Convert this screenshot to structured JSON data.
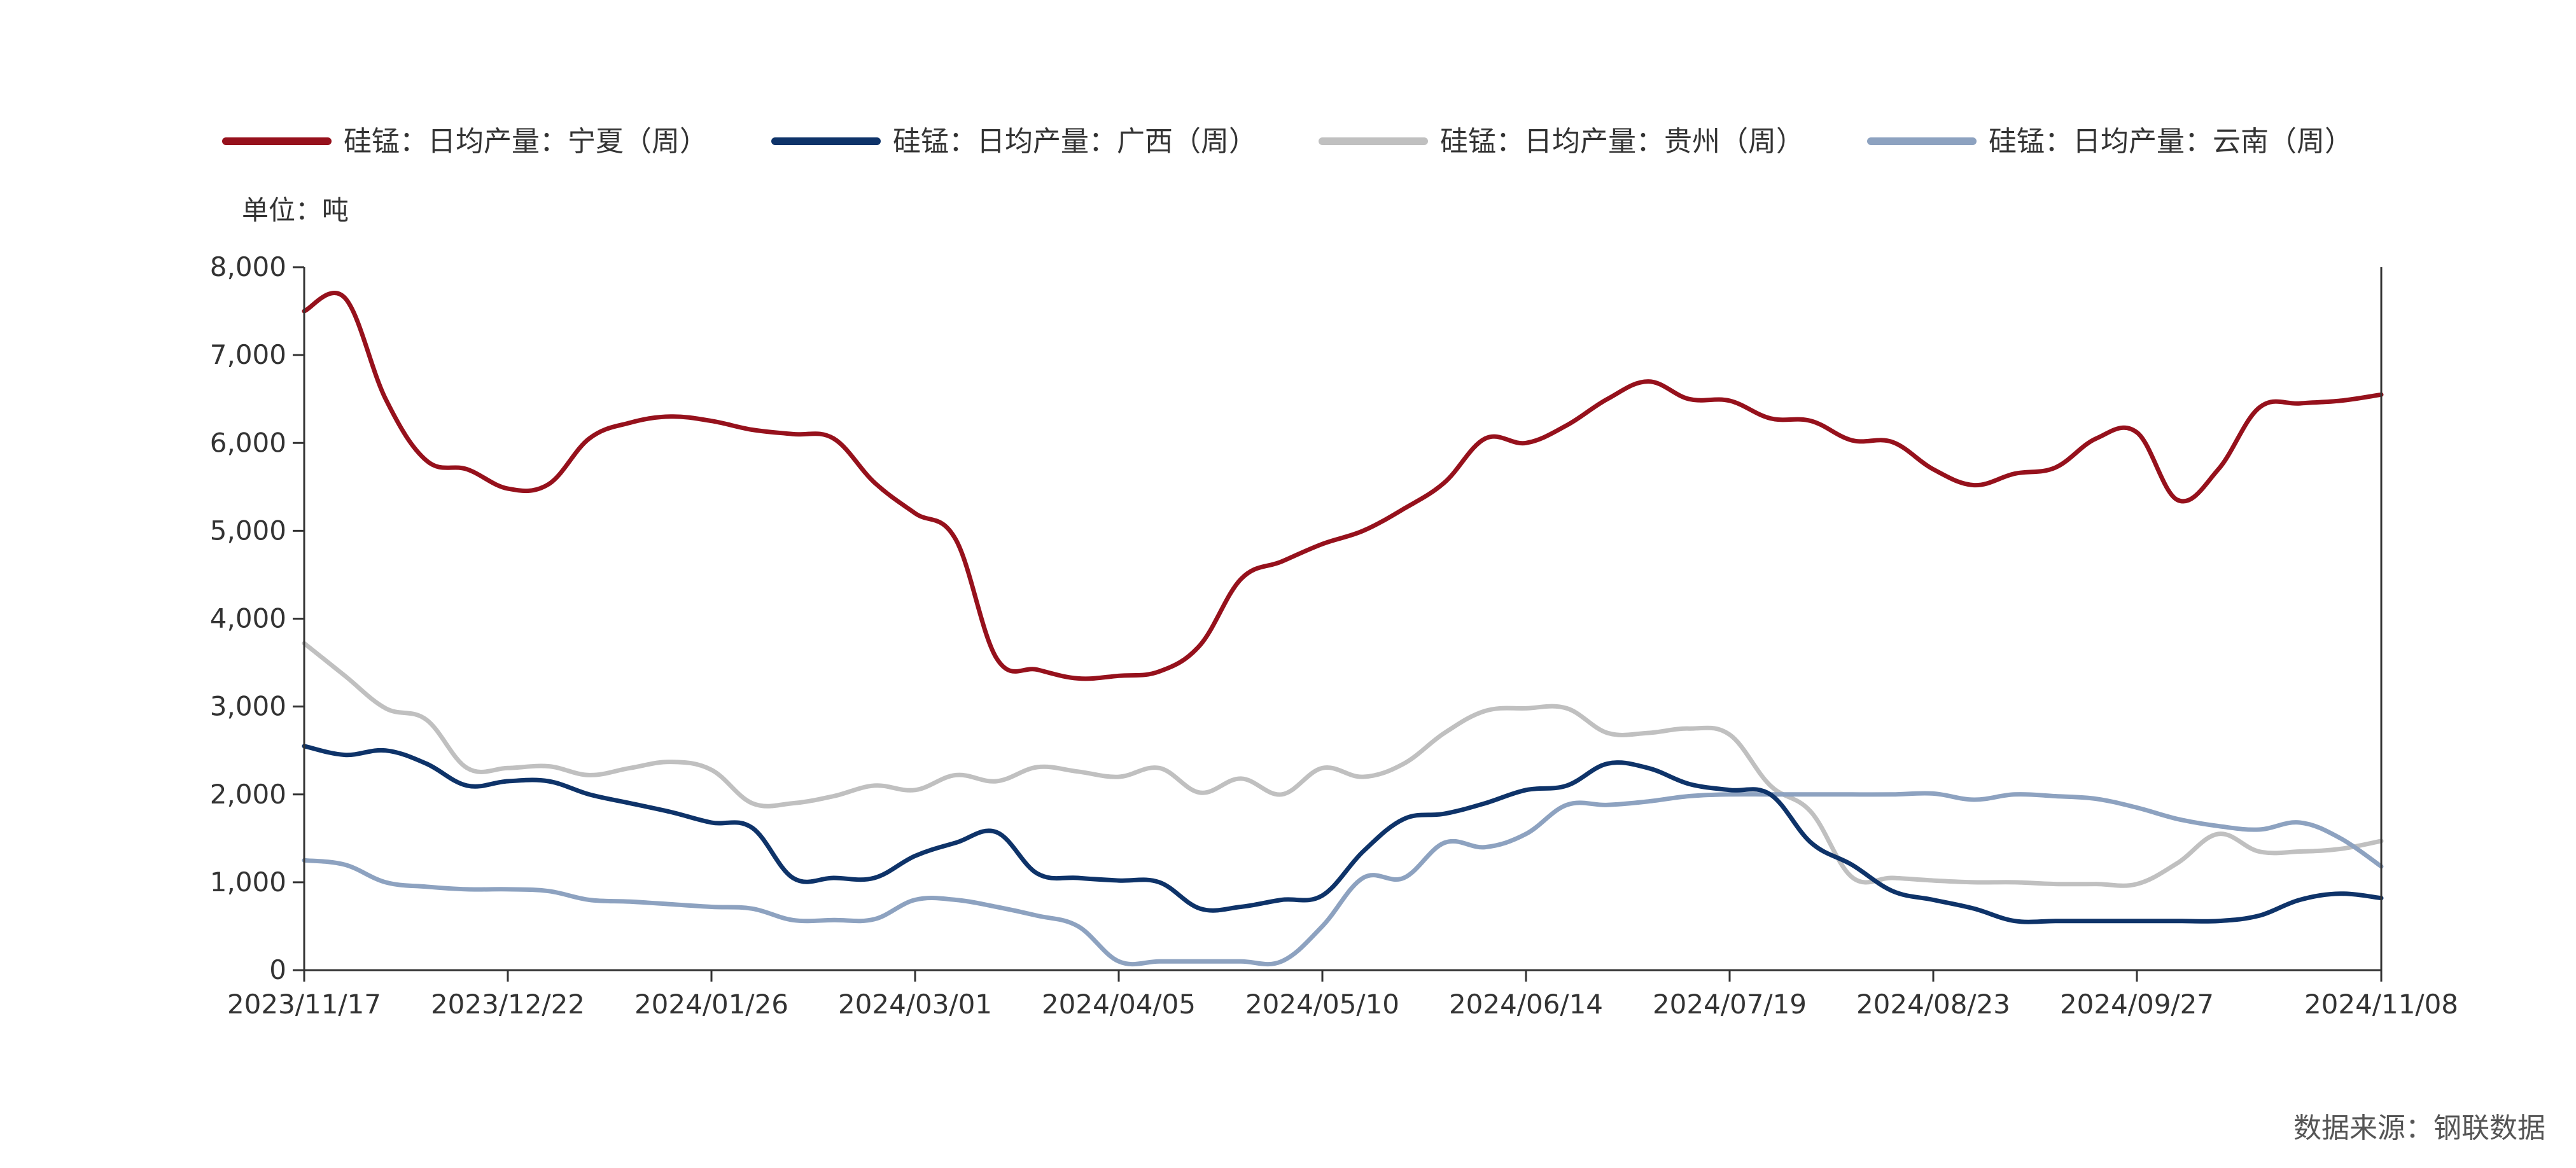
{
  "chart_data": {
    "type": "line",
    "unit_label": "单位：吨",
    "source": "数据来源：钢联数据",
    "ylim": [
      0,
      8000
    ],
    "y_ticks": [
      "0",
      "1,000",
      "2,000",
      "3,000",
      "4,000",
      "5,000",
      "6,000",
      "7,000",
      "8,000"
    ],
    "x_range": [
      "2023-11-17",
      "2024-11-08"
    ],
    "x_ticks": [
      "2023/11/17",
      "2023/12/22",
      "2024/01/26",
      "2024/03/01",
      "2024/04/05",
      "2024/05/10",
      "2024/06/14",
      "2024/07/19",
      "2024/08/23",
      "2024/09/27",
      "2024/11/08"
    ],
    "legend_position": "top",
    "grid": false,
    "series": [
      {
        "name": "硅锰：日均产量：宁夏（周）",
        "color": "#96111c",
        "x": [
          "2023-11-17",
          "2023-11-24",
          "2023-12-01",
          "2023-12-08",
          "2023-12-15",
          "2023-12-22",
          "2023-12-29",
          "2024-01-05",
          "2024-01-12",
          "2024-01-19",
          "2024-01-26",
          "2024-02-02",
          "2024-02-09",
          "2024-02-16",
          "2024-02-23",
          "2024-03-01",
          "2024-03-08",
          "2024-03-15",
          "2024-03-22",
          "2024-03-29",
          "2024-04-05",
          "2024-04-12",
          "2024-04-19",
          "2024-04-26",
          "2024-05-03",
          "2024-05-10",
          "2024-05-17",
          "2024-05-24",
          "2024-05-31",
          "2024-06-07",
          "2024-06-14",
          "2024-06-21",
          "2024-06-28",
          "2024-07-05",
          "2024-07-12",
          "2024-07-19",
          "2024-07-26",
          "2024-08-02",
          "2024-08-09",
          "2024-08-16",
          "2024-08-23",
          "2024-08-30",
          "2024-09-06",
          "2024-09-13",
          "2024-09-20",
          "2024-09-27",
          "2024-10-04",
          "2024-10-11",
          "2024-10-18",
          "2024-10-25",
          "2024-11-01",
          "2024-11-08"
        ],
        "y": [
          7500,
          7650,
          6500,
          5800,
          5700,
          5480,
          5530,
          6050,
          6230,
          6300,
          6250,
          6150,
          6100,
          6050,
          5550,
          5200,
          4900,
          3550,
          3420,
          3320,
          3350,
          3400,
          3700,
          4450,
          4650,
          4850,
          5000,
          5250,
          5550,
          6050,
          6000,
          6200,
          6500,
          6700,
          6500,
          6480,
          6280,
          6250,
          6030,
          6010,
          5700,
          5520,
          5650,
          5720,
          6050,
          6120,
          5350,
          5700,
          6400,
          6450,
          6480,
          6550
        ]
      },
      {
        "name": "硅锰：日均产量：广西（周）",
        "color": "#0e3369",
        "x": [
          "2023-11-17",
          "2023-11-24",
          "2023-12-01",
          "2023-12-08",
          "2023-12-15",
          "2023-12-22",
          "2023-12-29",
          "2024-01-05",
          "2024-01-12",
          "2024-01-19",
          "2024-01-26",
          "2024-02-02",
          "2024-02-09",
          "2024-02-16",
          "2024-02-23",
          "2024-03-01",
          "2024-03-08",
          "2024-03-15",
          "2024-03-22",
          "2024-03-29",
          "2024-04-05",
          "2024-04-12",
          "2024-04-19",
          "2024-04-26",
          "2024-05-03",
          "2024-05-10",
          "2024-05-17",
          "2024-05-24",
          "2024-05-31",
          "2024-06-07",
          "2024-06-14",
          "2024-06-21",
          "2024-06-28",
          "2024-07-05",
          "2024-07-12",
          "2024-07-19",
          "2024-07-26",
          "2024-08-02",
          "2024-08-09",
          "2024-08-16",
          "2024-08-23",
          "2024-08-30",
          "2024-09-06",
          "2024-09-13",
          "2024-09-20",
          "2024-09-27",
          "2024-10-04",
          "2024-10-11",
          "2024-10-18",
          "2024-10-25",
          "2024-11-01",
          "2024-11-08"
        ],
        "y": [
          2550,
          2450,
          2500,
          2350,
          2100,
          2150,
          2150,
          2000,
          1900,
          1800,
          1680,
          1620,
          1050,
          1050,
          1050,
          1300,
          1450,
          1570,
          1100,
          1050,
          1020,
          1000,
          700,
          720,
          800,
          850,
          1350,
          1720,
          1780,
          1900,
          2050,
          2100,
          2350,
          2300,
          2120,
          2050,
          2000,
          1450,
          1200,
          900,
          800,
          700,
          560,
          560,
          560,
          560,
          560,
          560,
          620,
          800,
          870,
          820
        ]
      },
      {
        "name": "硅锰：日均产量：贵州（周）",
        "color": "#c0c0c0",
        "x": [
          "2023-11-17",
          "2023-11-24",
          "2023-12-01",
          "2023-12-08",
          "2023-12-15",
          "2023-12-22",
          "2023-12-29",
          "2024-01-05",
          "2024-01-12",
          "2024-01-19",
          "2024-01-26",
          "2024-02-02",
          "2024-02-09",
          "2024-02-16",
          "2024-02-23",
          "2024-03-01",
          "2024-03-08",
          "2024-03-15",
          "2024-03-22",
          "2024-03-29",
          "2024-04-05",
          "2024-04-12",
          "2024-04-19",
          "2024-04-26",
          "2024-05-03",
          "2024-05-10",
          "2024-05-17",
          "2024-05-24",
          "2024-05-31",
          "2024-06-07",
          "2024-06-14",
          "2024-06-21",
          "2024-06-28",
          "2024-07-05",
          "2024-07-12",
          "2024-07-19",
          "2024-07-26",
          "2024-08-02",
          "2024-08-09",
          "2024-08-16",
          "2024-08-23",
          "2024-08-30",
          "2024-09-06",
          "2024-09-13",
          "2024-09-20",
          "2024-09-27",
          "2024-10-04",
          "2024-10-11",
          "2024-10-18",
          "2024-10-25",
          "2024-11-01",
          "2024-11-08"
        ],
        "y": [
          3720,
          3350,
          2980,
          2850,
          2300,
          2300,
          2320,
          2220,
          2300,
          2370,
          2280,
          1900,
          1900,
          1980,
          2100,
          2050,
          2220,
          2150,
          2310,
          2260,
          2200,
          2300,
          2020,
          2180,
          2000,
          2300,
          2200,
          2350,
          2700,
          2950,
          2980,
          2980,
          2700,
          2700,
          2750,
          2680,
          2100,
          1800,
          1060,
          1050,
          1020,
          1000,
          1000,
          980,
          980,
          980,
          1220,
          1550,
          1350,
          1350,
          1380,
          1470
        ]
      },
      {
        "name": "硅锰：日均产量：云南（周）",
        "color": "#8da2c0",
        "x": [
          "2023-11-17",
          "2023-11-24",
          "2023-12-01",
          "2023-12-08",
          "2023-12-15",
          "2023-12-22",
          "2023-12-29",
          "2024-01-05",
          "2024-01-12",
          "2024-01-19",
          "2024-01-26",
          "2024-02-02",
          "2024-02-09",
          "2024-02-16",
          "2024-02-23",
          "2024-03-01",
          "2024-03-08",
          "2024-03-15",
          "2024-03-22",
          "2024-03-29",
          "2024-04-05",
          "2024-04-12",
          "2024-04-19",
          "2024-04-26",
          "2024-05-03",
          "2024-05-10",
          "2024-05-17",
          "2024-05-24",
          "2024-05-31",
          "2024-06-07",
          "2024-06-14",
          "2024-06-21",
          "2024-06-28",
          "2024-07-05",
          "2024-07-12",
          "2024-07-19",
          "2024-07-26",
          "2024-08-02",
          "2024-08-09",
          "2024-08-16",
          "2024-08-23",
          "2024-08-30",
          "2024-09-06",
          "2024-09-13",
          "2024-09-20",
          "2024-09-27",
          "2024-10-04",
          "2024-10-11",
          "2024-10-18",
          "2024-10-25",
          "2024-11-01",
          "2024-11-08"
        ],
        "y": [
          1250,
          1200,
          1000,
          950,
          920,
          920,
          900,
          800,
          780,
          750,
          720,
          700,
          570,
          570,
          580,
          800,
          800,
          720,
          620,
          500,
          100,
          100,
          100,
          100,
          100,
          500,
          1050,
          1050,
          1450,
          1400,
          1550,
          1880,
          1880,
          1920,
          1980,
          2000,
          2000,
          2000,
          2000,
          2000,
          2010,
          1940,
          2000,
          1980,
          1950,
          1850,
          1720,
          1640,
          1600,
          1680,
          1500,
          1180
        ]
      }
    ]
  }
}
